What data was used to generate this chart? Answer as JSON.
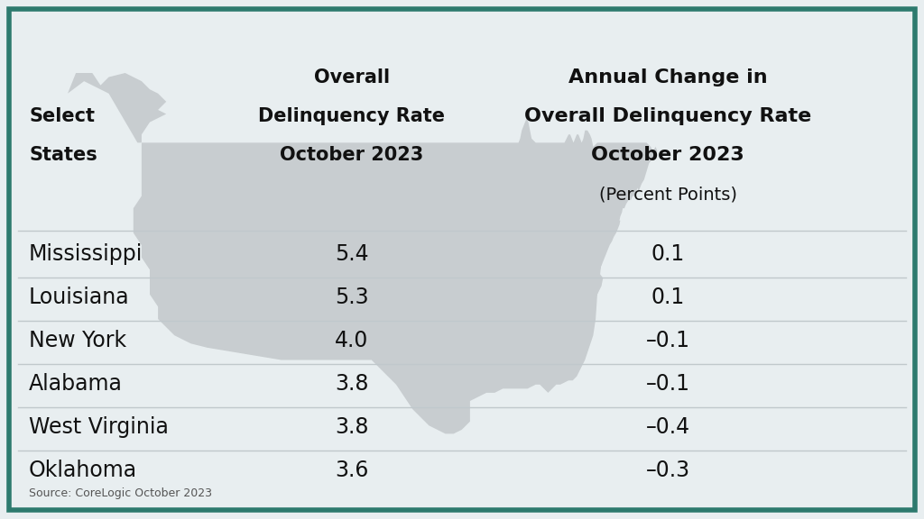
{
  "states": [
    "Mississippi",
    "Louisiana",
    "New York",
    "Alabama",
    "West Virginia",
    "Oklahoma"
  ],
  "delinquency_rate": [
    "5.4",
    "5.3",
    "4.0",
    "3.8",
    "3.8",
    "3.6"
  ],
  "annual_change": [
    "0.1",
    "0.1",
    "–0.1",
    "–0.1",
    "–0.4",
    "–0.3"
  ],
  "col1_header_line1": "Select",
  "col1_header_line2": "States",
  "col2_header_line1": "Overall",
  "col2_header_line2": "Delinquency Rate",
  "col2_header_line3": "October 2023",
  "col3_header_line1": "Annual Change in",
  "col3_header_line2": "Overall Delinquency Rate",
  "col3_header_line3": "October 2023",
  "col3_header_sub": "(Percent Points)",
  "source_text": "Source: CoreLogic October 2023",
  "background_color": "#e8eef0",
  "border_color": "#2d7a6e",
  "text_color": "#111111",
  "map_color": "#c8cdd0",
  "line_color": "#c0c8cc",
  "fig_width": 10.24,
  "fig_height": 5.76,
  "col2_header_bold": false,
  "col3_header_bold": true,
  "header_fontsize": 15,
  "data_fontsize": 17,
  "source_fontsize": 9
}
